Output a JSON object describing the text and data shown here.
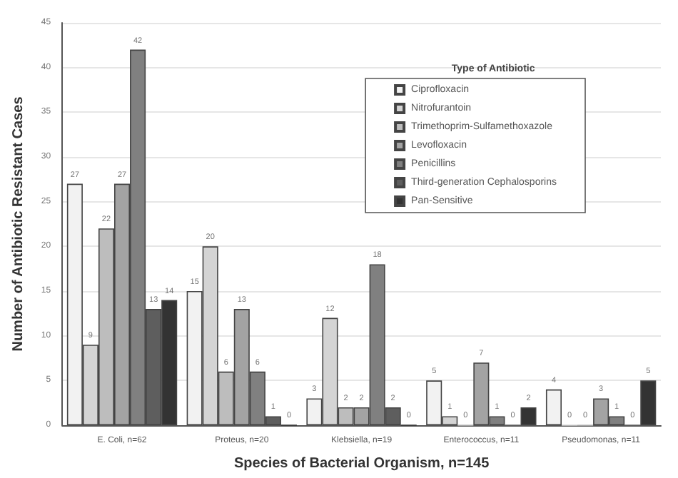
{
  "chart_data": {
    "type": "bar",
    "xlabel": "Species of Bacterial Organism, n=145",
    "ylabel": "Number of Antibiotic Resistant Cases",
    "legend_title": "Type of Antibiotic",
    "categories": [
      "E. Coli, n=62",
      "Proteus, n=20",
      "Klebsiella, n=19",
      "Enterococcus, n=11",
      "Pseudomonas, n=11"
    ],
    "series": [
      {
        "name": "Ciprofloxacin",
        "color": "#f2f2f2",
        "values": [
          27,
          15,
          3,
          5,
          4
        ]
      },
      {
        "name": "Nitrofurantoin",
        "color": "#d4d4d4",
        "values": [
          9,
          20,
          12,
          1,
          0
        ]
      },
      {
        "name": "Trimethoprim-Sulfamethoxazole",
        "color": "#bdbdbd",
        "values": [
          22,
          6,
          2,
          0,
          0
        ]
      },
      {
        "name": "Levofloxacin",
        "color": "#a3a3a3",
        "values": [
          27,
          13,
          2,
          7,
          3
        ]
      },
      {
        "name": "Penicillins",
        "color": "#808080",
        "values": [
          42,
          6,
          18,
          1,
          1
        ]
      },
      {
        "name": "Third-generation Cephalosporins",
        "color": "#5e5e5e",
        "values": [
          13,
          1,
          2,
          0,
          0
        ]
      },
      {
        "name": "Pan-Sensitive",
        "color": "#333333",
        "values": [
          14,
          0,
          0,
          2,
          5
        ]
      }
    ],
    "ylim": [
      0,
      45
    ],
    "yticks": [
      0,
      5,
      10,
      15,
      20,
      25,
      30,
      35,
      40,
      45
    ],
    "grid": "y",
    "legend": "top right",
    "data_labels": true
  }
}
